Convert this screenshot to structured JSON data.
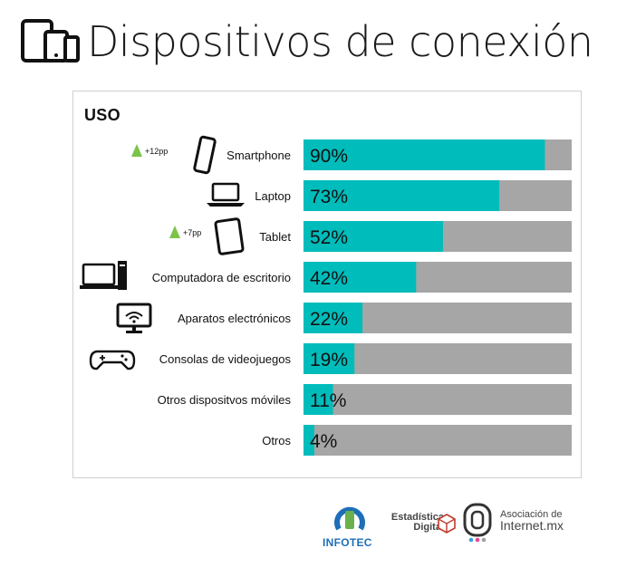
{
  "page": {
    "title": "Dispositivos de conexión",
    "section_label": "USO"
  },
  "chart_data": {
    "type": "bar",
    "orientation": "horizontal",
    "stacked_to_total": 100,
    "categories": [
      "Smartphone",
      "Laptop",
      "Tablet",
      "Computadora de escritorio",
      "Aparatos electrónicos",
      "Consolas de videojuegos",
      "Otros dispositvos móviles",
      "Otros"
    ],
    "values": [
      90,
      73,
      52,
      42,
      22,
      19,
      11,
      4
    ],
    "value_labels": [
      "90%",
      "73%",
      "52%",
      "42%",
      "22%",
      "19%",
      "11%",
      "4%"
    ],
    "icons": [
      "smartphone-icon",
      "laptop-icon",
      "tablet-icon",
      "desktop-computer-icon",
      "tv-icon",
      "gamepad-icon",
      "",
      ""
    ],
    "annotations": [
      {
        "category": "Smartphone",
        "text": "+12pp",
        "marker": "up-triangle"
      },
      {
        "category": "Tablet",
        "text": "+7pp",
        "marker": "up-triangle"
      }
    ],
    "colors": {
      "bar": "#00bcbb",
      "remainder": "#a6a6a6",
      "up_marker": "#7cc34a"
    },
    "xlim": [
      0,
      100
    ],
    "grid": false
  },
  "footer": {
    "infotec": "INFOTEC",
    "estadistica_line1": "Estadística",
    "estadistica_line2": "Digital",
    "asociacion_line1": "Asociación de",
    "asociacion_line2": "Internet.mx"
  }
}
